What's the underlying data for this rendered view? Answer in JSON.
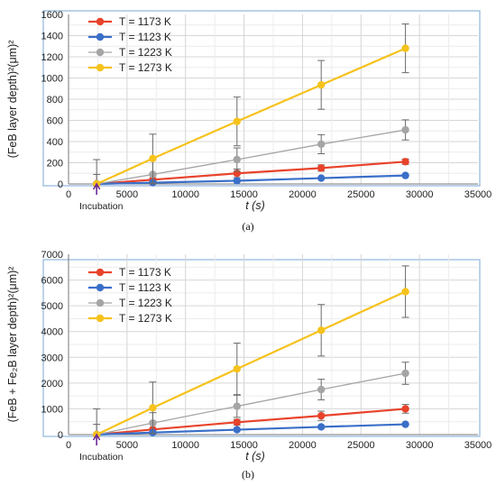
{
  "chart_data": [
    {
      "type": "line",
      "caption": "(a)",
      "ylabel": "(FeB layer depth)²(μm)²",
      "xlabel": "t (s)",
      "annotation": "Incubation",
      "xlim": [
        0,
        35000
      ],
      "ylim": [
        0,
        1600
      ],
      "xticks": [
        0,
        5000,
        10000,
        15000,
        20000,
        25000,
        30000,
        35000
      ],
      "yticks": [
        0,
        200,
        400,
        600,
        800,
        1000,
        1200,
        1400,
        1600
      ],
      "grid": true,
      "legend_position": "top-left",
      "series": [
        {
          "name": "T = 1173 K",
          "color": "#e8432b",
          "x": [
            2400,
            7200,
            14400,
            21600,
            28800
          ],
          "y": [
            0,
            40,
            100,
            150,
            210
          ],
          "err": [
            0,
            10,
            40,
            30,
            25
          ]
        },
        {
          "name": "T = 1123 K",
          "color": "#3a6fc8",
          "x": [
            2400,
            7200,
            14400,
            21600,
            28800
          ],
          "y": [
            0,
            12,
            30,
            55,
            80
          ],
          "err": [
            0,
            0,
            0,
            0,
            0
          ]
        },
        {
          "name": "T = 1223 K",
          "color": "#a5a5a5",
          "x": [
            2400,
            7200,
            14400,
            21600,
            28800
          ],
          "y": [
            0,
            90,
            230,
            375,
            510
          ],
          "err": [
            90,
            140,
            110,
            90,
            95
          ]
        },
        {
          "name": "T = 1273 K",
          "color": "#f6c21c",
          "x": [
            2400,
            7200,
            14400,
            21600,
            28800
          ],
          "y": [
            0,
            240,
            590,
            935,
            1280
          ],
          "err": [
            230,
            230,
            230,
            230,
            230
          ]
        }
      ]
    },
    {
      "type": "line",
      "caption": "(b)",
      "ylabel": "(FeB + Fe₂B layer depth)²(μm)²",
      "xlabel": "t (s)",
      "annotation": "Incubation",
      "xlim": [
        0,
        35000
      ],
      "ylim": [
        0,
        7000
      ],
      "xticks": [
        0,
        5000,
        10000,
        15000,
        20000,
        25000,
        30000,
        35000
      ],
      "yticks": [
        0,
        1000,
        2000,
        3000,
        4000,
        5000,
        6000,
        7000
      ],
      "grid": true,
      "legend_position": "top-left",
      "series": [
        {
          "name": "T = 1173 K",
          "color": "#e8432b",
          "x": [
            2400,
            7200,
            14400,
            21600,
            28800
          ],
          "y": [
            0,
            200,
            480,
            730,
            1000
          ],
          "err": [
            0,
            0,
            110,
            180,
            170
          ]
        },
        {
          "name": "T = 1123 K",
          "color": "#3a6fc8",
          "x": [
            2400,
            7200,
            14400,
            21600,
            28800
          ],
          "y": [
            0,
            80,
            190,
            300,
            400
          ],
          "err": [
            0,
            0,
            0,
            0,
            0
          ]
        },
        {
          "name": "T = 1223 K",
          "color": "#a5a5a5",
          "x": [
            2400,
            7200,
            14400,
            21600,
            28800
          ],
          "y": [
            0,
            450,
            1100,
            1750,
            2380
          ],
          "err": [
            400,
            400,
            430,
            400,
            430
          ]
        },
        {
          "name": "T = 1273 K",
          "color": "#f6c21c",
          "x": [
            2400,
            7200,
            14400,
            21600,
            28800
          ],
          "y": [
            0,
            1040,
            2550,
            4050,
            5550
          ],
          "err": [
            1000,
            1000,
            1000,
            1000,
            1000
          ]
        }
      ]
    }
  ]
}
